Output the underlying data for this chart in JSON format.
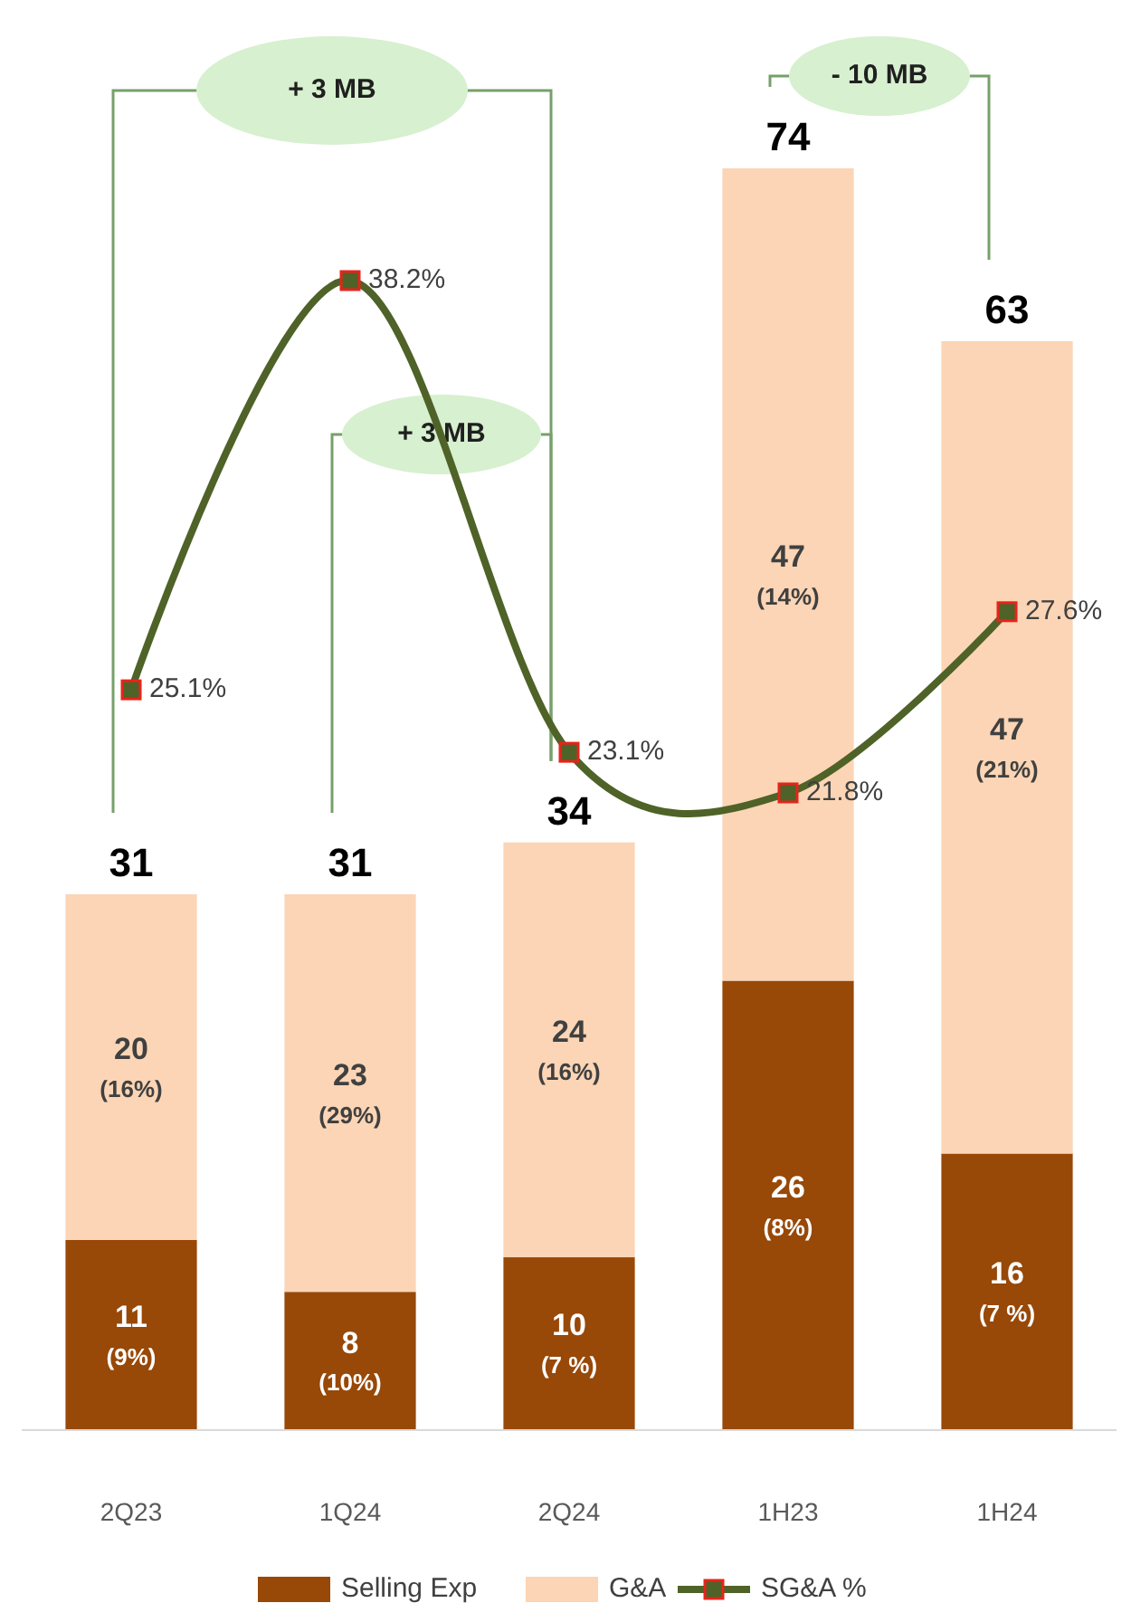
{
  "chart_data": {
    "type": "bar",
    "stacked": true,
    "categories": [
      "2Q23",
      "1Q24",
      "2Q24",
      "1H23",
      "1H24"
    ],
    "series": [
      {
        "name": "Selling Exp",
        "color": "#984807",
        "values": [
          11,
          8,
          10,
          26,
          16
        ],
        "value_labels": [
          "11\n(9%)",
          "8\n(10%)",
          "10\n(7 %)",
          "26\n(8%)",
          "16\n(7 %)"
        ]
      },
      {
        "name": "G&A",
        "color": "#fbd5b5",
        "values": [
          20,
          23,
          24,
          47,
          47
        ],
        "value_labels": [
          "20\n(16%)",
          "23\n(29%)",
          "24\n(16%)",
          "47\n(14%)",
          "47\n(21%)"
        ]
      },
      {
        "name": "SG&A %",
        "type": "line",
        "axis": "y2",
        "color": "#4f6228",
        "marker": "square",
        "values": [
          25.1,
          38.2,
          23.1,
          21.8,
          27.6
        ],
        "value_labels": [
          "25.1%",
          "38.2%",
          "23.1%",
          "21.8%",
          "27.6%"
        ]
      }
    ],
    "totals": [
      "31",
      "31",
      "34",
      "74",
      "63"
    ],
    "tick_labels": "x",
    "legend": "bottom",
    "annotations": [
      "+ 3 MB",
      "+ 3 MB",
      "- 10 MB"
    ]
  }
}
